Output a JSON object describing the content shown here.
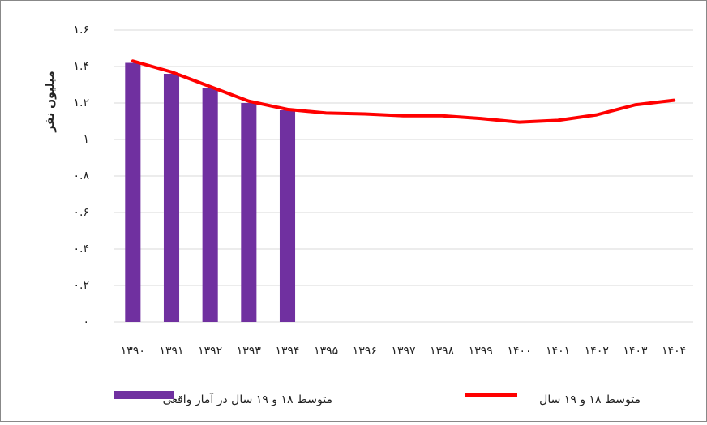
{
  "chart_data": {
    "type": "bar_line",
    "y_label": "میلیون نفر",
    "categories": [
      "۱۳۹۰",
      "۱۳۹۱",
      "۱۳۹۲",
      "۱۳۹۳",
      "۱۳۹۴",
      "۱۳۹۵",
      "۱۳۹۶",
      "۱۳۹۷",
      "۱۳۹۸",
      "۱۳۹۹",
      "۱۴۰۰",
      "۱۴۰۱",
      "۱۴۰۲",
      "۱۴۰۳",
      "۱۴۰۴"
    ],
    "series": [
      {
        "name": "متوسط ۱۸ و ۱۹ سال در آمار واقعی",
        "type": "bar",
        "color": "#7030a0",
        "values": [
          1.42,
          1.36,
          1.28,
          1.2,
          1.16,
          null,
          null,
          null,
          null,
          null,
          null,
          null,
          null,
          null,
          null
        ]
      },
      {
        "name": "متوسط ۱۸ و ۱۹ سال",
        "type": "line",
        "color": "#ff0000",
        "values": [
          1.43,
          1.37,
          1.29,
          1.21,
          1.165,
          1.145,
          1.14,
          1.13,
          1.13,
          1.115,
          1.095,
          1.105,
          1.135,
          1.19,
          1.215
        ]
      }
    ],
    "ylim": [
      0,
      1.6
    ],
    "yticks": [
      {
        "value": 0,
        "label": "۰"
      },
      {
        "value": 0.2,
        "label": "۰.۲"
      },
      {
        "value": 0.4,
        "label": "۰.۴"
      },
      {
        "value": 0.6,
        "label": "۰.۶"
      },
      {
        "value": 0.8,
        "label": "۰.۸"
      },
      {
        "value": 1,
        "label": "۱"
      },
      {
        "value": 1.2,
        "label": "۱.۲"
      },
      {
        "value": 1.4,
        "label": "۱.۴"
      },
      {
        "value": 1.6,
        "label": "۱.۶"
      }
    ],
    "grid": true,
    "legend": "bottom"
  }
}
